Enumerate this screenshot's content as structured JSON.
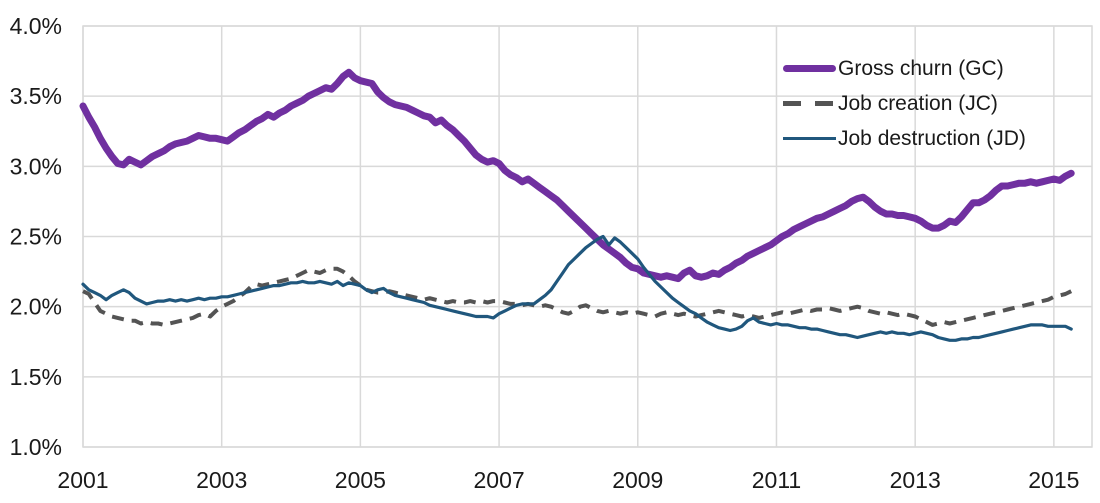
{
  "chart_data": {
    "type": "line",
    "title": "",
    "xlabel": "",
    "ylabel": "",
    "grid": true,
    "legend_position": "top-right",
    "background": "#ffffff",
    "gridline_color": "#d9d9d9",
    "axis_text_color": "#1a1a1a",
    "ylim": [
      1.0,
      4.0
    ],
    "xlim": [
      2001,
      2015.55
    ],
    "x_start": 2001,
    "x_frequency": "monthly",
    "x_end": 2015.25,
    "yticks": {
      "values": [
        1.0,
        1.5,
        2.0,
        2.5,
        3.0,
        3.5,
        4.0
      ],
      "labels": [
        "1.0%",
        "1.5%",
        "2.0%",
        "2.5%",
        "3.0%",
        "3.5%",
        "4.0%"
      ]
    },
    "xticks": {
      "values": [
        2001,
        2003,
        2005,
        2007,
        2009,
        2011,
        2013,
        2015
      ],
      "labels": [
        "2001",
        "2003",
        "2005",
        "2007",
        "2009",
        "2011",
        "2013",
        "2015"
      ]
    },
    "series": [
      {
        "name": "Gross churn (GC)",
        "color": "#7030A0",
        "width": 7,
        "dash": null,
        "values": [
          3.43,
          3.35,
          3.28,
          3.2,
          3.13,
          3.07,
          3.02,
          3.01,
          3.05,
          3.03,
          3.01,
          3.04,
          3.07,
          3.09,
          3.11,
          3.14,
          3.16,
          3.17,
          3.18,
          3.2,
          3.22,
          3.21,
          3.2,
          3.2,
          3.19,
          3.18,
          3.21,
          3.24,
          3.26,
          3.29,
          3.32,
          3.34,
          3.37,
          3.35,
          3.38,
          3.4,
          3.43,
          3.45,
          3.47,
          3.5,
          3.52,
          3.54,
          3.56,
          3.55,
          3.59,
          3.64,
          3.67,
          3.63,
          3.61,
          3.6,
          3.59,
          3.53,
          3.49,
          3.46,
          3.44,
          3.43,
          3.42,
          3.4,
          3.38,
          3.36,
          3.35,
          3.31,
          3.33,
          3.29,
          3.26,
          3.22,
          3.18,
          3.13,
          3.08,
          3.05,
          3.03,
          3.04,
          3.02,
          2.97,
          2.94,
          2.92,
          2.89,
          2.91,
          2.88,
          2.85,
          2.82,
          2.79,
          2.76,
          2.72,
          2.68,
          2.64,
          2.6,
          2.56,
          2.52,
          2.48,
          2.44,
          2.41,
          2.38,
          2.35,
          2.31,
          2.28,
          2.27,
          2.24,
          2.23,
          2.22,
          2.21,
          2.22,
          2.21,
          2.2,
          2.24,
          2.26,
          2.22,
          2.21,
          2.22,
          2.24,
          2.23,
          2.26,
          2.28,
          2.31,
          2.33,
          2.36,
          2.38,
          2.4,
          2.42,
          2.44,
          2.47,
          2.5,
          2.52,
          2.55,
          2.57,
          2.59,
          2.61,
          2.63,
          2.64,
          2.66,
          2.68,
          2.7,
          2.72,
          2.75,
          2.77,
          2.78,
          2.75,
          2.71,
          2.68,
          2.66,
          2.66,
          2.65,
          2.65,
          2.64,
          2.63,
          2.61,
          2.58,
          2.56,
          2.56,
          2.58,
          2.61,
          2.6,
          2.64,
          2.69,
          2.74,
          2.74,
          2.76,
          2.79,
          2.83,
          2.86,
          2.86,
          2.87,
          2.88,
          2.88,
          2.89,
          2.88,
          2.89,
          2.9,
          2.91,
          2.9,
          2.93,
          2.95
        ]
      },
      {
        "name": "Job creation (JC)",
        "color": "#545454",
        "width": 4,
        "dash": [
          12,
          8
        ],
        "values": [
          2.11,
          2.09,
          2.03,
          1.97,
          1.95,
          1.93,
          1.92,
          1.91,
          1.9,
          1.9,
          1.88,
          1.89,
          1.88,
          1.88,
          1.87,
          1.88,
          1.89,
          1.9,
          1.91,
          1.92,
          1.94,
          1.95,
          1.93,
          1.97,
          2.0,
          2.02,
          2.04,
          2.07,
          2.1,
          2.14,
          2.16,
          2.15,
          2.16,
          2.17,
          2.18,
          2.19,
          2.2,
          2.22,
          2.24,
          2.26,
          2.25,
          2.24,
          2.26,
          2.27,
          2.27,
          2.25,
          2.22,
          2.18,
          2.15,
          2.12,
          2.11,
          2.1,
          2.1,
          2.11,
          2.1,
          2.09,
          2.08,
          2.07,
          2.06,
          2.05,
          2.06,
          2.05,
          2.04,
          2.03,
          2.04,
          2.03,
          2.03,
          2.04,
          2.03,
          2.04,
          2.03,
          2.04,
          2.04,
          2.03,
          2.02,
          2.02,
          2.01,
          2.02,
          2.01,
          2.0,
          2.01,
          2.0,
          1.98,
          1.96,
          1.95,
          1.97,
          2.0,
          2.01,
          1.99,
          1.97,
          1.96,
          1.97,
          1.96,
          1.95,
          1.96,
          1.95,
          1.96,
          1.95,
          1.94,
          1.93,
          1.95,
          1.96,
          1.95,
          1.94,
          1.95,
          1.94,
          1.93,
          1.94,
          1.95,
          1.96,
          1.97,
          1.96,
          1.95,
          1.94,
          1.93,
          1.94,
          1.93,
          1.92,
          1.93,
          1.94,
          1.95,
          1.96,
          1.95,
          1.96,
          1.97,
          1.98,
          1.97,
          1.98,
          1.98,
          1.99,
          1.98,
          1.97,
          1.98,
          1.99,
          2.0,
          1.99,
          1.97,
          1.96,
          1.95,
          1.96,
          1.95,
          1.94,
          1.95,
          1.94,
          1.93,
          1.91,
          1.89,
          1.87,
          1.88,
          1.89,
          1.88,
          1.89,
          1.9,
          1.91,
          1.92,
          1.93,
          1.94,
          1.95,
          1.96,
          1.97,
          1.98,
          1.99,
          2.0,
          2.01,
          2.02,
          2.03,
          2.04,
          2.05,
          2.07,
          2.08,
          2.09,
          2.11
        ]
      },
      {
        "name": "Job destruction (JD)",
        "color": "#20577D",
        "width": 3.2,
        "dash": null,
        "values": [
          2.16,
          2.12,
          2.1,
          2.08,
          2.05,
          2.08,
          2.1,
          2.12,
          2.1,
          2.06,
          2.04,
          2.02,
          2.03,
          2.04,
          2.04,
          2.05,
          2.04,
          2.05,
          2.04,
          2.05,
          2.06,
          2.05,
          2.06,
          2.06,
          2.07,
          2.07,
          2.08,
          2.09,
          2.1,
          2.11,
          2.12,
          2.13,
          2.14,
          2.15,
          2.15,
          2.16,
          2.17,
          2.17,
          2.18,
          2.17,
          2.17,
          2.18,
          2.17,
          2.16,
          2.18,
          2.15,
          2.17,
          2.16,
          2.15,
          2.12,
          2.1,
          2.12,
          2.13,
          2.1,
          2.08,
          2.07,
          2.06,
          2.05,
          2.04,
          2.03,
          2.01,
          2.0,
          1.99,
          1.98,
          1.97,
          1.96,
          1.95,
          1.94,
          1.93,
          1.93,
          1.93,
          1.92,
          1.95,
          1.97,
          1.99,
          2.01,
          2.02,
          2.02,
          2.02,
          2.05,
          2.08,
          2.12,
          2.18,
          2.24,
          2.3,
          2.34,
          2.38,
          2.42,
          2.45,
          2.48,
          2.5,
          2.44,
          2.49,
          2.46,
          2.42,
          2.38,
          2.34,
          2.28,
          2.23,
          2.18,
          2.14,
          2.1,
          2.06,
          2.03,
          2.0,
          1.97,
          1.95,
          1.92,
          1.89,
          1.87,
          1.85,
          1.84,
          1.83,
          1.84,
          1.86,
          1.9,
          1.92,
          1.89,
          1.88,
          1.87,
          1.88,
          1.87,
          1.87,
          1.86,
          1.85,
          1.85,
          1.84,
          1.84,
          1.83,
          1.82,
          1.81,
          1.8,
          1.8,
          1.79,
          1.78,
          1.79,
          1.8,
          1.81,
          1.82,
          1.81,
          1.82,
          1.81,
          1.81,
          1.8,
          1.81,
          1.82,
          1.81,
          1.8,
          1.78,
          1.77,
          1.76,
          1.76,
          1.77,
          1.77,
          1.78,
          1.78,
          1.79,
          1.8,
          1.81,
          1.82,
          1.83,
          1.84,
          1.85,
          1.86,
          1.87,
          1.87,
          1.87,
          1.86,
          1.86,
          1.86,
          1.86,
          1.84
        ]
      }
    ]
  },
  "legend": {
    "items": [
      {
        "label": "Gross churn (GC)"
      },
      {
        "label": "Job creation (JC)"
      },
      {
        "label": "Job destruction (JD)"
      }
    ]
  }
}
